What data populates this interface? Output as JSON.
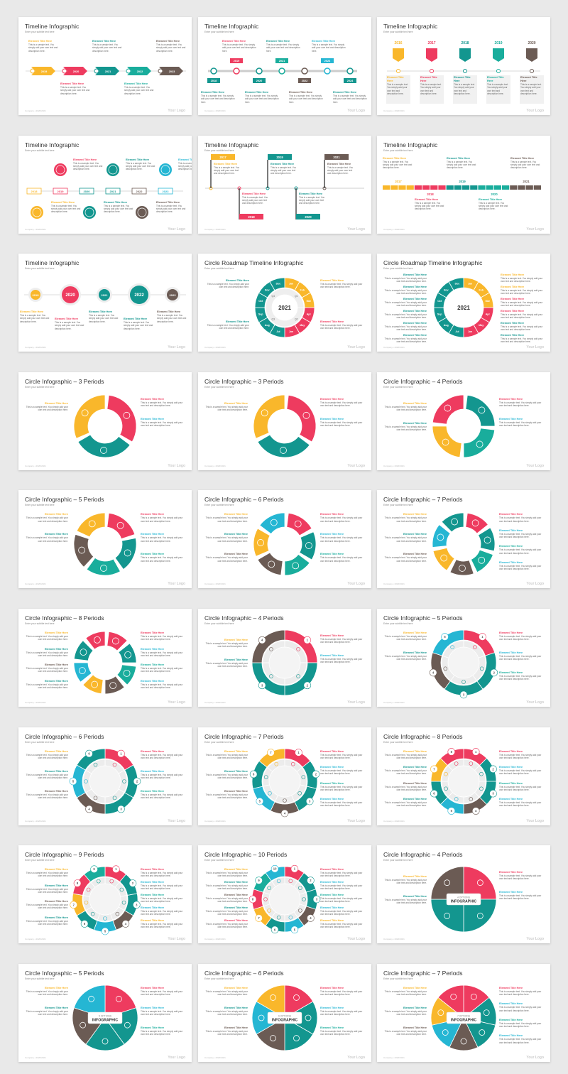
{
  "colors": {
    "yellow": "#f9b72b",
    "red": "#ee3b5f",
    "teal": "#13968f",
    "cyan": "#25b6d3",
    "brown": "#6b5b54",
    "green": "#19ad9c",
    "gray": "#e9e9ea",
    "dark": "#333333"
  },
  "common": {
    "subtitle": "Enter your subtitle text here",
    "element_title": "Element Title Here",
    "element_text": "This is a sample text. You simply add your own text and description here.",
    "footer": "Company • 2020/2021",
    "logo": "Your Logo"
  },
  "slides": [
    {
      "title": "Timeline Infographic",
      "kind": "t1",
      "labels": [
        "2019",
        "2020",
        "2021",
        "2022",
        "2023"
      ]
    },
    {
      "title": "Timeline Infographic",
      "kind": "t2",
      "labels": [
        "2018",
        "2019",
        "2020",
        "2021",
        "2022",
        "2023",
        "2024"
      ]
    },
    {
      "title": "Timeline Infographic",
      "kind": "t3",
      "labels": [
        "2016",
        "2017",
        "2018",
        "2019",
        "2020"
      ]
    },
    {
      "title": "Timeline Infographic",
      "kind": "t4",
      "labels": [
        "2018",
        "2019",
        "2020",
        "2021",
        "2022",
        "2023"
      ]
    },
    {
      "title": "Timeline Infographic",
      "kind": "t5",
      "labels": [
        "2017",
        "2018",
        "2019",
        "2020",
        "2021"
      ]
    },
    {
      "title": "Timeline Infographic",
      "kind": "t6",
      "labels": [
        "2017",
        "2018",
        "2019",
        "2020",
        "2021"
      ]
    },
    {
      "title": "Timeline Infographic",
      "kind": "t7",
      "labels": [
        "2019",
        "2020",
        "2021",
        "2022",
        "2023"
      ]
    },
    {
      "title": "Circle Roadmap Timeline Infographic",
      "kind": "road",
      "center": "2021",
      "months": [
        "Jan",
        "Feb",
        "Mar",
        "Apr",
        "May",
        "Jun",
        "Jul",
        "Aug",
        "Sep",
        "Oct",
        "Nov",
        "Dec"
      ],
      "quarters": [
        "Q1",
        "Q2",
        "Q3",
        "Q4"
      ]
    },
    {
      "title": "Circle Roadmap Timeline Infographic",
      "kind": "road2",
      "center": "2021",
      "months": [
        "Jan",
        "Feb",
        "Mar",
        "Apr",
        "May",
        "Jun",
        "Jul",
        "Aug",
        "Sep",
        "Oct",
        "Nov",
        "Dec"
      ]
    },
    {
      "title": "Circle Infographic – 3 Periods",
      "kind": "arc",
      "n": 3
    },
    {
      "title": "Circle Infographic – 3 Periods",
      "kind": "arc",
      "n": 3
    },
    {
      "title": "Circle Infographic – 4 Periods",
      "kind": "arc",
      "n": 4
    },
    {
      "title": "Circle Infographic – 5 Periods",
      "kind": "arc",
      "n": 5
    },
    {
      "title": "Circle Infographic – 6 Periods",
      "kind": "arc",
      "n": 6
    },
    {
      "title": "Circle Infographic – 7 Periods",
      "kind": "arc",
      "n": 7
    },
    {
      "title": "Circle Infographic – 8 Periods",
      "kind": "arc",
      "n": 8
    },
    {
      "title": "Circle Infographic – 4 Periods",
      "kind": "ring",
      "n": 4
    },
    {
      "title": "Circle Infographic – 5 Periods",
      "kind": "ring",
      "n": 5
    },
    {
      "title": "Circle Infographic – 6 Periods",
      "kind": "ring",
      "n": 6
    },
    {
      "title": "Circle Infographic – 7 Periods",
      "kind": "ring",
      "n": 7
    },
    {
      "title": "Circle Infographic – 8 Periods",
      "kind": "ring",
      "n": 8
    },
    {
      "title": "Circle Infographic – 9 Periods",
      "kind": "ring",
      "n": 9
    },
    {
      "title": "Circle Infographic – 10 Periods",
      "kind": "ring",
      "n": 10
    },
    {
      "title": "Circle Infographic – 4 Periods",
      "kind": "pie",
      "n": 4,
      "center_top": "4 OPTIONS",
      "center": "INFOGRAPHIC"
    },
    {
      "title": "Circle Infographic – 5 Periods",
      "kind": "pie",
      "n": 5,
      "center_top": "5 OPTIONS",
      "center": "INFOGRAPHIC"
    },
    {
      "title": "Circle Infographic – 6 Periods",
      "kind": "pie",
      "n": 6,
      "center_top": "6 OPTIONS",
      "center": "INFOGRAPHIC"
    },
    {
      "title": "Circle Infographic – 7 Periods",
      "kind": "pie",
      "n": 7,
      "center_top": "7 OPTIONS",
      "center": "INFOGRAPHIC"
    }
  ]
}
